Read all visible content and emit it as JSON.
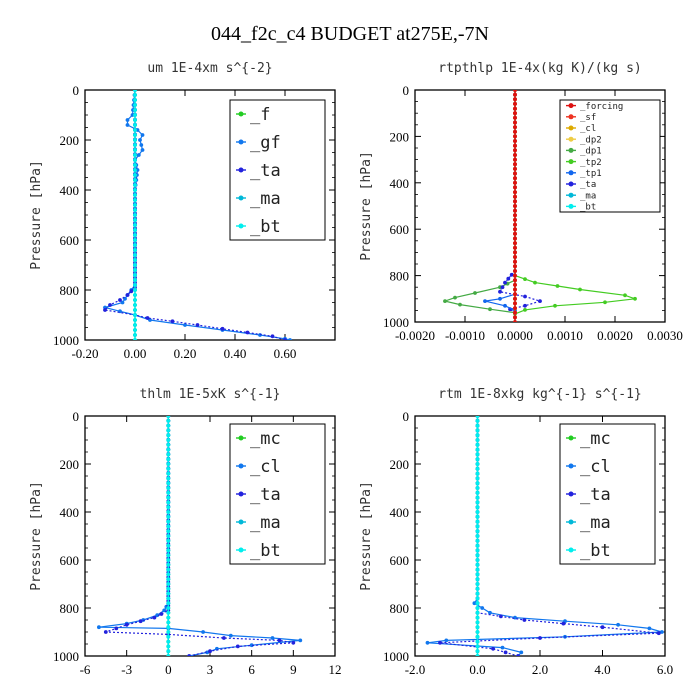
{
  "title": "044_f2c_c4  BUDGET at275E,-7N",
  "colors": {
    "tl_f": "#22cc22",
    "tl_gf": "#1177ee",
    "tl_ta": "#2222dd",
    "tl_ma": "#00b8d8",
    "tl_bt": "#00eeee",
    "rt_forcing": "#dd1111",
    "rt_sf": "#ee3322",
    "rt_cl": "#ddaa00",
    "rt_dp2": "#eecc44",
    "rt_dp1": "#44aa44",
    "rt_tp2": "#44cc22",
    "rt_tp1": "#1166ee",
    "rt_ta": "#2222dd",
    "rt_ma": "#00b8d8",
    "rt_bt": "#00eeee"
  },
  "chart_data": [
    {
      "id": "um",
      "type": "line",
      "title": "um   1E-4xm s^{-2}",
      "ylabel": "Pressure [hPa]",
      "xlim": [
        -0.2,
        0.8
      ],
      "ylim": [
        1000,
        0
      ],
      "xticks": [
        "-0.20",
        "0.00",
        "0.20",
        "0.40",
        "0.60"
      ],
      "yticks": [
        "0",
        "200",
        "400",
        "600",
        "800",
        "1000"
      ],
      "legend_entries": [
        "_f",
        "_gf",
        "_ta",
        "_ma",
        "_bt"
      ],
      "legend_font": 17,
      "series": [
        {
          "name": "_f",
          "color_key": "tl_f",
          "dash": "",
          "x": [
            0,
            0
          ],
          "y": [
            0,
            1000
          ]
        },
        {
          "name": "_gf",
          "color_key": "tl_gf",
          "dash": "",
          "x": [
            0,
            -0.01,
            -0.03,
            -0.03,
            0.01,
            0.03,
            0.02,
            0.03,
            0.0,
            0.01,
            0.0,
            0.0,
            0.0,
            -0.03,
            -0.05,
            -0.12,
            0.0,
            0.06,
            0.2,
            0.35,
            0.5,
            0.6,
            0.62
          ],
          "y": [
            0,
            100,
            120,
            140,
            160,
            180,
            200,
            240,
            280,
            320,
            400,
            700,
            780,
            820,
            850,
            870,
            900,
            920,
            940,
            960,
            980,
            995,
            1000
          ]
        },
        {
          "name": "_ta",
          "color_key": "tl_ta",
          "dash": "2,2",
          "x": [
            0,
            0,
            -0.03,
            -0.06,
            -0.1,
            -0.12,
            0.0,
            0.05,
            0.15,
            0.25,
            0.35,
            0.45,
            0.55,
            0.6
          ],
          "y": [
            0,
            790,
            820,
            840,
            860,
            880,
            900,
            912,
            925,
            940,
            955,
            970,
            985,
            1000
          ]
        },
        {
          "name": "_ma",
          "color_key": "tl_ma",
          "dash": "",
          "x": [
            0,
            0
          ],
          "y": [
            0,
            1000
          ]
        },
        {
          "name": "_bt",
          "color_key": "tl_bt",
          "dash": "",
          "x": [
            0,
            0
          ],
          "y": [
            0,
            1000
          ]
        }
      ]
    },
    {
      "id": "rtpthlp",
      "type": "line",
      "title": "rtpthlp  1E-4x(kg K)/(kg s)",
      "ylabel": "Pressure [hPa]",
      "xlim": [
        -0.002,
        0.003
      ],
      "ylim": [
        1000,
        0
      ],
      "xticks": [
        "-0.0020",
        "-0.0010",
        "0.0000",
        "0.0010",
        "0.0020",
        "0.0030"
      ],
      "yticks": [
        "0",
        "200",
        "400",
        "600",
        "800",
        "1000"
      ],
      "legend_entries": [
        "_forcing",
        "_sf",
        "_cl",
        "_dp2",
        "_dp1",
        "_tp2",
        "_tp1",
        "_ta",
        "_ma",
        "_bt"
      ],
      "legend_font": 9,
      "series": [
        {
          "name": "_tp2",
          "color_key": "rt_tp2",
          "dash": "",
          "x": [
            0,
            0,
            0.0004,
            0.0013,
            0.0022,
            0.0024,
            0.0018,
            0.0008,
            0.0002,
            0
          ],
          "y": [
            0,
            800,
            830,
            860,
            885,
            900,
            915,
            930,
            948,
            965
          ]
        },
        {
          "name": "_dp1",
          "color_key": "rt_dp1",
          "dash": "",
          "x": [
            0,
            0,
            -0.0003,
            -0.0008,
            -0.0012,
            -0.0014,
            -0.0011,
            -0.0005,
            0
          ],
          "y": [
            0,
            820,
            850,
            875,
            895,
            910,
            925,
            945,
            960
          ]
        },
        {
          "name": "_ta",
          "color_key": "rt_ta",
          "dash": "2,2",
          "x": [
            0,
            0,
            -0.0002,
            -0.0003,
            0.0002,
            0.0005,
            0.0002,
            -0.0001,
            0
          ],
          "y": [
            0,
            780,
            830,
            870,
            890,
            910,
            930,
            945,
            960
          ]
        },
        {
          "name": "_tp1",
          "color_key": "rt_tp1",
          "dash": "",
          "x": [
            0,
            0,
            -0.0003,
            -0.0006,
            -0.0002,
            0
          ],
          "y": [
            0,
            880,
            900,
            910,
            930,
            950
          ]
        },
        {
          "name": "_ma",
          "color_key": "rt_ma",
          "dash": "",
          "x": [
            0,
            0
          ],
          "y": [
            0,
            1000
          ]
        },
        {
          "name": "_bt",
          "color_key": "rt_bt",
          "dash": "",
          "x": [
            0,
            0
          ],
          "y": [
            0,
            1000
          ]
        },
        {
          "name": "_cl",
          "color_key": "rt_cl",
          "dash": "",
          "x": [
            0,
            0
          ],
          "y": [
            0,
            1000
          ]
        },
        {
          "name": "_dp2",
          "color_key": "rt_dp2",
          "dash": "",
          "x": [
            0,
            0
          ],
          "y": [
            0,
            1000
          ]
        },
        {
          "name": "_sf",
          "color_key": "rt_sf",
          "dash": "",
          "x": [
            0,
            0
          ],
          "y": [
            0,
            1000
          ]
        },
        {
          "name": "_forcing",
          "color_key": "rt_forcing",
          "dash": "",
          "x": [
            0,
            0
          ],
          "y": [
            0,
            1000
          ]
        }
      ]
    },
    {
      "id": "thlm",
      "type": "line",
      "title": "thlm   1E-5xK s^{-1}",
      "ylabel": "Pressure [hPa]",
      "xlim": [
        -6,
        12
      ],
      "ylim": [
        1000,
        0
      ],
      "xticks": [
        "-6",
        "-3",
        "0",
        "3",
        "6",
        "9",
        "12"
      ],
      "yticks": [
        "0",
        "200",
        "400",
        "600",
        "800",
        "1000"
      ],
      "legend_entries": [
        "_mc",
        "_cl",
        "_ta",
        "_ma",
        "_bt"
      ],
      "legend_font": 17,
      "series": [
        {
          "name": "_mc",
          "color_key": "tl_f",
          "dash": "",
          "x": [
            0,
            0
          ],
          "y": [
            0,
            1000
          ]
        },
        {
          "name": "_cl",
          "color_key": "tl_gf",
          "dash": "",
          "x": [
            0,
            0,
            -0.3,
            -0.8,
            -1.8,
            -3.0,
            -5.0,
            0.0,
            2.5,
            4.5,
            7.5,
            9.5,
            6.0,
            3.5,
            2.8,
            1.5
          ],
          "y": [
            0,
            780,
            810,
            830,
            850,
            865,
            880,
            885,
            900,
            915,
            925,
            935,
            955,
            970,
            985,
            1000
          ]
        },
        {
          "name": "_ta",
          "color_key": "tl_ta",
          "dash": "2,2",
          "x": [
            0,
            0,
            -1.0,
            -3.0,
            -4.5,
            0.0,
            4.0,
            8.0,
            9.0,
            5.0,
            3.0,
            1.5
          ],
          "y": [
            0,
            810,
            840,
            870,
            900,
            910,
            925,
            935,
            945,
            960,
            980,
            1000
          ]
        },
        {
          "name": "_ma",
          "color_key": "tl_ma",
          "dash": "",
          "x": [
            0,
            0
          ],
          "y": [
            0,
            1000
          ]
        },
        {
          "name": "_bt",
          "color_key": "tl_bt",
          "dash": "",
          "x": [
            0,
            0
          ],
          "y": [
            0,
            1000
          ]
        }
      ]
    },
    {
      "id": "rtm",
      "type": "line",
      "title": "rtm   1E-8xkg kg^{-1} s^{-1}",
      "ylabel": "Pressure [hPa]",
      "xlim": [
        -2.0,
        6.0
      ],
      "ylim": [
        1000,
        0
      ],
      "xticks": [
        "-2.0",
        "0.0",
        "2.0",
        "4.0",
        "6.0"
      ],
      "yticks": [
        "0",
        "200",
        "400",
        "600",
        "800",
        "1000"
      ],
      "legend_entries": [
        "_mc",
        "_cl",
        "_ta",
        "_ma",
        "_bt"
      ],
      "legend_font": 17,
      "series": [
        {
          "name": "_mc",
          "color_key": "tl_f",
          "dash": "",
          "x": [
            0,
            0
          ],
          "y": [
            0,
            1000
          ]
        },
        {
          "name": "_cl",
          "color_key": "tl_gf",
          "dash": "",
          "x": [
            0,
            0,
            -0.1,
            0.4,
            1.2,
            2.8,
            4.5,
            5.5,
            5.9,
            2.8,
            -1.0,
            -1.6,
            0.8,
            1.4,
            1.3
          ],
          "y": [
            0,
            760,
            780,
            820,
            840,
            855,
            870,
            885,
            900,
            920,
            935,
            945,
            965,
            985,
            1000
          ]
        },
        {
          "name": "_ta",
          "color_key": "tl_ta",
          "dash": "2,2",
          "x": [
            0,
            0,
            1.5,
            4.0,
            5.8,
            2.0,
            -1.2,
            0.5,
            1.3
          ],
          "y": [
            0,
            820,
            850,
            880,
            905,
            925,
            945,
            970,
            1000
          ]
        },
        {
          "name": "_ma",
          "color_key": "tl_ma",
          "dash": "",
          "x": [
            0,
            0
          ],
          "y": [
            0,
            1000
          ]
        },
        {
          "name": "_bt",
          "color_key": "tl_bt",
          "dash": "",
          "x": [
            0,
            0
          ],
          "y": [
            0,
            1000
          ]
        }
      ]
    }
  ]
}
